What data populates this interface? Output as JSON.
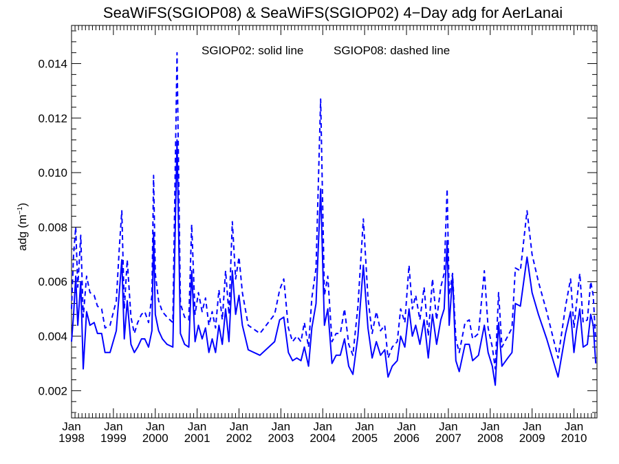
{
  "chart_data": {
    "type": "line",
    "title": "SeaWiFS(SGIOP08) & SeaWiFS(SGIOP02) 4−Day adg for AerLanai",
    "annotation_left": "SGIOP02: solid line",
    "annotation_right": "SGIOP08: dashed line",
    "ylabel_main": "adg (m",
    "ylabel_sup": "−1",
    "ylabel_close": ")",
    "ylim": [
      0.001,
      0.0154
    ],
    "xlim": [
      1998.0,
      2010.55
    ],
    "x_unit": "decimal year",
    "yticks": [
      0.002,
      0.004,
      0.006,
      0.008,
      0.01,
      0.012,
      0.014
    ],
    "ytick_labels": [
      "0.002",
      "0.004",
      "0.006",
      "0.008",
      "0.010",
      "0.012",
      "0.014"
    ],
    "xticks": [
      {
        "month": "Jan",
        "year": "1998",
        "x": 1998
      },
      {
        "month": "Jan",
        "year": "1999",
        "x": 1999
      },
      {
        "month": "Jan",
        "year": "2000",
        "x": 2000
      },
      {
        "month": "Jan",
        "year": "2001",
        "x": 2001
      },
      {
        "month": "Jan",
        "year": "2002",
        "x": 2002
      },
      {
        "month": "Jan",
        "year": "2003",
        "x": 2003
      },
      {
        "month": "Jan",
        "year": "2004",
        "x": 2004
      },
      {
        "month": "Jan",
        "year": "2005",
        "x": 2005
      },
      {
        "month": "Jan",
        "year": "2006",
        "x": 2006
      },
      {
        "month": "Jan",
        "year": "2007",
        "x": 2007
      },
      {
        "month": "Jan",
        "year": "2008",
        "x": 2008
      },
      {
        "month": "Jan",
        "year": "2009",
        "x": 2009
      },
      {
        "month": "Jan",
        "year": "2010",
        "x": 2010
      }
    ],
    "grid": false,
    "line_color": "#0000ff",
    "series": [
      {
        "name": "SGIOP02",
        "style": "solid",
        "points": [
          [
            1998.0,
            0.0038
          ],
          [
            1998.05,
            0.0048
          ],
          [
            1998.1,
            0.0062
          ],
          [
            1998.15,
            0.0044
          ],
          [
            1998.22,
            0.006
          ],
          [
            1998.28,
            0.0028
          ],
          [
            1998.36,
            0.0049
          ],
          [
            1998.44,
            0.0044
          ],
          [
            1998.54,
            0.0045
          ],
          [
            1998.62,
            0.0041
          ],
          [
            1998.72,
            0.0041
          ],
          [
            1998.8,
            0.0034
          ],
          [
            1998.92,
            0.0034
          ],
          [
            1999.07,
            0.0042
          ],
          [
            1999.14,
            0.0056
          ],
          [
            1999.2,
            0.0068
          ],
          [
            1999.26,
            0.0039
          ],
          [
            1999.33,
            0.0053
          ],
          [
            1999.42,
            0.0037
          ],
          [
            1999.5,
            0.0034
          ],
          [
            1999.58,
            0.0036
          ],
          [
            1999.67,
            0.0039
          ],
          [
            1999.75,
            0.0039
          ],
          [
            1999.84,
            0.0036
          ],
          [
            1999.92,
            0.0042
          ],
          [
            1999.96,
            0.0078
          ],
          [
            2000.0,
            0.0048
          ],
          [
            2000.08,
            0.0042
          ],
          [
            2000.17,
            0.0039
          ],
          [
            2000.28,
            0.0037
          ],
          [
            2000.42,
            0.0036
          ],
          [
            2000.52,
            0.0112
          ],
          [
            2000.6,
            0.0041
          ],
          [
            2000.7,
            0.0037
          ],
          [
            2000.8,
            0.0036
          ],
          [
            2000.87,
            0.0064
          ],
          [
            2000.95,
            0.0038
          ],
          [
            2001.03,
            0.0044
          ],
          [
            2001.12,
            0.0039
          ],
          [
            2001.2,
            0.0043
          ],
          [
            2001.28,
            0.0034
          ],
          [
            2001.36,
            0.0039
          ],
          [
            2001.44,
            0.0034
          ],
          [
            2001.52,
            0.0044
          ],
          [
            2001.6,
            0.0037
          ],
          [
            2001.68,
            0.005
          ],
          [
            2001.76,
            0.0038
          ],
          [
            2001.84,
            0.0064
          ],
          [
            2001.92,
            0.0048
          ],
          [
            2002.0,
            0.0055
          ],
          [
            2002.08,
            0.0044
          ],
          [
            2002.22,
            0.0035
          ],
          [
            2002.5,
            0.0033
          ],
          [
            2002.85,
            0.0038
          ],
          [
            2002.97,
            0.0046
          ],
          [
            2003.07,
            0.0047
          ],
          [
            2003.18,
            0.0034
          ],
          [
            2003.28,
            0.0031
          ],
          [
            2003.38,
            0.0032
          ],
          [
            2003.48,
            0.0031
          ],
          [
            2003.56,
            0.0036
          ],
          [
            2003.66,
            0.0029
          ],
          [
            2003.74,
            0.0043
          ],
          [
            2003.84,
            0.0052
          ],
          [
            2003.95,
            0.0094
          ],
          [
            2004.04,
            0.0044
          ],
          [
            2004.12,
            0.005
          ],
          [
            2004.22,
            0.003
          ],
          [
            2004.32,
            0.0033
          ],
          [
            2004.42,
            0.0033
          ],
          [
            2004.52,
            0.0039
          ],
          [
            2004.62,
            0.0029
          ],
          [
            2004.72,
            0.0026
          ],
          [
            2004.84,
            0.004
          ],
          [
            2004.97,
            0.0066
          ],
          [
            2005.08,
            0.0043
          ],
          [
            2005.18,
            0.0032
          ],
          [
            2005.28,
            0.0038
          ],
          [
            2005.38,
            0.0033
          ],
          [
            2005.48,
            0.0035
          ],
          [
            2005.56,
            0.0025
          ],
          [
            2005.66,
            0.0029
          ],
          [
            2005.78,
            0.0031
          ],
          [
            2005.86,
            0.004
          ],
          [
            2005.96,
            0.0036
          ],
          [
            2006.06,
            0.005
          ],
          [
            2006.14,
            0.004
          ],
          [
            2006.22,
            0.0044
          ],
          [
            2006.32,
            0.0037
          ],
          [
            2006.42,
            0.0046
          ],
          [
            2006.52,
            0.0032
          ],
          [
            2006.62,
            0.0048
          ],
          [
            2006.72,
            0.0037
          ],
          [
            2006.82,
            0.0046
          ],
          [
            2006.9,
            0.005
          ],
          [
            2006.97,
            0.0075
          ],
          [
            2007.02,
            0.0044
          ],
          [
            2007.1,
            0.0062
          ],
          [
            2007.18,
            0.0031
          ],
          [
            2007.26,
            0.0027
          ],
          [
            2007.4,
            0.0037
          ],
          [
            2007.5,
            0.0037
          ],
          [
            2007.58,
            0.0031
          ],
          [
            2007.72,
            0.0033
          ],
          [
            2007.86,
            0.0044
          ],
          [
            2007.95,
            0.0034
          ],
          [
            2008.05,
            0.0029
          ],
          [
            2008.12,
            0.0022
          ],
          [
            2008.2,
            0.0045
          ],
          [
            2008.28,
            0.0029
          ],
          [
            2008.42,
            0.0032
          ],
          [
            2008.52,
            0.0034
          ],
          [
            2008.6,
            0.0052
          ],
          [
            2008.72,
            0.0051
          ],
          [
            2008.88,
            0.0069
          ],
          [
            2009.0,
            0.0056
          ],
          [
            2009.15,
            0.0048
          ],
          [
            2009.35,
            0.0039
          ],
          [
            2009.62,
            0.0025
          ],
          [
            2009.8,
            0.0041
          ],
          [
            2009.92,
            0.0049
          ],
          [
            2010.0,
            0.0034
          ],
          [
            2010.06,
            0.0042
          ],
          [
            2010.14,
            0.005
          ],
          [
            2010.22,
            0.0036
          ],
          [
            2010.32,
            0.0037
          ],
          [
            2010.4,
            0.0048
          ],
          [
            2010.46,
            0.0044
          ],
          [
            2010.52,
            0.003
          ]
        ]
      },
      {
        "name": "SGIOP08",
        "style": "dashed",
        "points": [
          [
            1998.0,
            0.005
          ],
          [
            1998.05,
            0.007
          ],
          [
            1998.1,
            0.008
          ],
          [
            1998.15,
            0.0058
          ],
          [
            1998.22,
            0.0077
          ],
          [
            1998.28,
            0.0047
          ],
          [
            1998.36,
            0.0062
          ],
          [
            1998.44,
            0.0056
          ],
          [
            1998.54,
            0.0055
          ],
          [
            1998.62,
            0.0051
          ],
          [
            1998.72,
            0.005
          ],
          [
            1998.8,
            0.0043
          ],
          [
            1998.92,
            0.0044
          ],
          [
            1999.07,
            0.0053
          ],
          [
            1999.14,
            0.0072
          ],
          [
            1999.2,
            0.0086
          ],
          [
            1999.26,
            0.005
          ],
          [
            1999.33,
            0.0068
          ],
          [
            1999.42,
            0.0047
          ],
          [
            1999.5,
            0.0041
          ],
          [
            1999.58,
            0.0045
          ],
          [
            1999.67,
            0.0048
          ],
          [
            1999.75,
            0.0049
          ],
          [
            1999.84,
            0.0045
          ],
          [
            1999.92,
            0.0055
          ],
          [
            1999.96,
            0.0099
          ],
          [
            2000.0,
            0.0063
          ],
          [
            2000.08,
            0.0053
          ],
          [
            2000.17,
            0.0049
          ],
          [
            2000.28,
            0.0047
          ],
          [
            2000.42,
            0.0045
          ],
          [
            2000.52,
            0.0144
          ],
          [
            2000.6,
            0.0052
          ],
          [
            2000.7,
            0.0047
          ],
          [
            2000.8,
            0.0046
          ],
          [
            2000.87,
            0.0081
          ],
          [
            2000.95,
            0.0048
          ],
          [
            2001.03,
            0.0056
          ],
          [
            2001.12,
            0.0049
          ],
          [
            2001.2,
            0.0054
          ],
          [
            2001.28,
            0.0044
          ],
          [
            2001.36,
            0.0049
          ],
          [
            2001.44,
            0.0043
          ],
          [
            2001.52,
            0.0057
          ],
          [
            2001.6,
            0.0046
          ],
          [
            2001.68,
            0.0064
          ],
          [
            2001.76,
            0.0048
          ],
          [
            2001.84,
            0.0082
          ],
          [
            2001.92,
            0.0061
          ],
          [
            2002.0,
            0.0069
          ],
          [
            2002.08,
            0.0056
          ],
          [
            2002.22,
            0.0044
          ],
          [
            2002.5,
            0.0041
          ],
          [
            2002.85,
            0.0048
          ],
          [
            2002.97,
            0.0057
          ],
          [
            2003.07,
            0.0061
          ],
          [
            2003.18,
            0.0043
          ],
          [
            2003.28,
            0.0038
          ],
          [
            2003.38,
            0.004
          ],
          [
            2003.48,
            0.0038
          ],
          [
            2003.56,
            0.0045
          ],
          [
            2003.66,
            0.0036
          ],
          [
            2003.74,
            0.0054
          ],
          [
            2003.84,
            0.0065
          ],
          [
            2003.95,
            0.0127
          ],
          [
            2004.04,
            0.0055
          ],
          [
            2004.12,
            0.0062
          ],
          [
            2004.22,
            0.0038
          ],
          [
            2004.32,
            0.0041
          ],
          [
            2004.42,
            0.0041
          ],
          [
            2004.52,
            0.005
          ],
          [
            2004.62,
            0.0037
          ],
          [
            2004.72,
            0.0033
          ],
          [
            2004.84,
            0.0051
          ],
          [
            2004.97,
            0.0083
          ],
          [
            2005.08,
            0.0054
          ],
          [
            2005.18,
            0.0041
          ],
          [
            2005.28,
            0.0049
          ],
          [
            2005.38,
            0.0042
          ],
          [
            2005.48,
            0.0044
          ],
          [
            2005.56,
            0.0032
          ],
          [
            2005.66,
            0.0036
          ],
          [
            2005.78,
            0.0038
          ],
          [
            2005.86,
            0.005
          ],
          [
            2005.96,
            0.0045
          ],
          [
            2006.06,
            0.0066
          ],
          [
            2006.14,
            0.005
          ],
          [
            2006.22,
            0.0055
          ],
          [
            2006.32,
            0.0046
          ],
          [
            2006.42,
            0.0058
          ],
          [
            2006.52,
            0.004
          ],
          [
            2006.62,
            0.0061
          ],
          [
            2006.72,
            0.0046
          ],
          [
            2006.82,
            0.0058
          ],
          [
            2006.9,
            0.0063
          ],
          [
            2006.97,
            0.0094
          ],
          [
            2007.02,
            0.0055
          ],
          [
            2007.1,
            0.0063
          ],
          [
            2007.18,
            0.0039
          ],
          [
            2007.26,
            0.0034
          ],
          [
            2007.4,
            0.0045
          ],
          [
            2007.5,
            0.0046
          ],
          [
            2007.58,
            0.0039
          ],
          [
            2007.72,
            0.0041
          ],
          [
            2007.86,
            0.0064
          ],
          [
            2007.95,
            0.0043
          ],
          [
            2008.05,
            0.0036
          ],
          [
            2008.12,
            0.0028
          ],
          [
            2008.2,
            0.0056
          ],
          [
            2008.28,
            0.0036
          ],
          [
            2008.42,
            0.004
          ],
          [
            2008.52,
            0.0043
          ],
          [
            2008.6,
            0.0065
          ],
          [
            2008.72,
            0.0064
          ],
          [
            2008.88,
            0.0086
          ],
          [
            2009.0,
            0.007
          ],
          [
            2009.15,
            0.006
          ],
          [
            2009.35,
            0.0049
          ],
          [
            2009.62,
            0.0032
          ],
          [
            2009.8,
            0.0051
          ],
          [
            2009.92,
            0.0061
          ],
          [
            2010.0,
            0.0043
          ],
          [
            2010.06,
            0.0052
          ],
          [
            2010.14,
            0.0063
          ],
          [
            2010.22,
            0.0045
          ],
          [
            2010.32,
            0.0046
          ],
          [
            2010.4,
            0.006
          ],
          [
            2010.46,
            0.0055
          ],
          [
            2010.52,
            0.0038
          ]
        ]
      }
    ]
  }
}
